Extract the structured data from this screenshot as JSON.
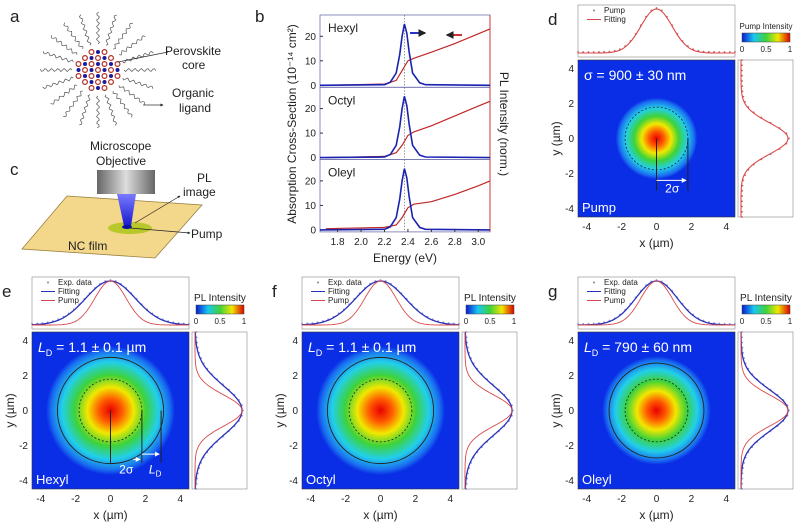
{
  "panels": {
    "a": {
      "letter": "a",
      "core_label_1": "Perovskite",
      "core_label_2": "core",
      "ligand_label_1": "Organic",
      "ligand_label_2": "ligand"
    },
    "c": {
      "letter": "c",
      "objective_1": "Microscope",
      "objective_2": "Objective",
      "pl_1": "PL",
      "pl_2": "image",
      "pump": "Pump",
      "film": "NC film"
    },
    "b": {
      "letter": "b"
    },
    "d": {
      "letter": "d",
      "annotation": "σ = 900 ± 30 nm",
      "corner": "Pump",
      "arrow_label": "2σ",
      "legend": [
        "Pump",
        "Fitting"
      ],
      "colorbar_title": "Pump Intensity",
      "colorbar_ticks": [
        "0",
        "0.5",
        "1"
      ]
    },
    "e": {
      "letter": "e",
      "annotation_pre": "L",
      "annotation_sub": "D",
      "annotation_post": " = 1.1 ± 0.1 µm",
      "corner": "Hexyl",
      "arrow_label_1": "2σ",
      "arrow_label_2": "L",
      "arrow_label_2_sub": "D",
      "legend": [
        "Exp. data",
        "Fitting",
        "Pump"
      ],
      "colorbar_title": "PL Intensity",
      "colorbar_ticks": [
        "0",
        "0.5",
        "1"
      ]
    },
    "f": {
      "letter": "f",
      "annotation_pre": "L",
      "annotation_sub": "D",
      "annotation_post": " = 1.1 ± 0.1 µm",
      "corner": "Octyl",
      "legend": [
        "Exp. data",
        "Fitting",
        "Pump"
      ],
      "colorbar_title": "PL Intensity",
      "colorbar_ticks": [
        "0",
        "0.5",
        "1"
      ]
    },
    "g": {
      "letter": "g",
      "annotation_pre": "L",
      "annotation_sub": "D",
      "annotation_post": " = 790 ± 60 nm",
      "corner": "Oleyl",
      "legend": [
        "Exp. data",
        "Fitting",
        "Pump"
      ],
      "colorbar_title": "PL Intensity",
      "colorbar_ticks": [
        "0",
        "0.5",
        "1"
      ]
    }
  },
  "chart_data": [
    {
      "panel": "b",
      "type": "line",
      "xlabel": "Energy (eV)",
      "ylabel": "Absorption Cross-Section (10⁻¹⁴ cm²)",
      "ylabel_right": "PL Intensity (norm.)",
      "xlim": [
        1.65,
        3.1
      ],
      "ylim": [
        0,
        27
      ],
      "xticks": [
        "1.8",
        "2.0",
        "2.2",
        "2.4",
        "2.6",
        "2.8",
        "3.0"
      ],
      "yticks": [
        "0",
        "10",
        "20"
      ],
      "colors": {
        "absorption": "#c0282a",
        "pl": "#1a22b0"
      },
      "subplots": [
        {
          "name": "Hexyl",
          "absorption": {
            "x": [
              1.7,
              2.2,
              2.3,
              2.35,
              2.4,
              2.45,
              2.6,
              2.8,
              3.0,
              3.1
            ],
            "y": [
              0,
              0.5,
              2,
              6,
              10,
              11,
              13.5,
              17,
              21,
              23
            ]
          },
          "pl": {
            "x": [
              2.2,
              2.25,
              2.3,
              2.33,
              2.35,
              2.37,
              2.39,
              2.41,
              2.44,
              2.5,
              2.55
            ],
            "y": [
              0.01,
              0.05,
              0.2,
              0.5,
              0.8,
              1,
              0.85,
              0.55,
              0.2,
              0.04,
              0.01
            ]
          }
        },
        {
          "name": "Octyl",
          "absorption": {
            "x": [
              1.7,
              2.2,
              2.3,
              2.35,
              2.4,
              2.45,
              2.6,
              2.8,
              3.0,
              3.1
            ],
            "y": [
              0,
              0.5,
              2,
              5,
              9,
              10.5,
              13,
              17,
              21,
              23
            ]
          },
          "pl": {
            "x": [
              2.2,
              2.25,
              2.3,
              2.33,
              2.35,
              2.37,
              2.39,
              2.41,
              2.44,
              2.5,
              2.55
            ],
            "y": [
              0.01,
              0.05,
              0.2,
              0.5,
              0.8,
              1,
              0.85,
              0.55,
              0.2,
              0.04,
              0.01
            ]
          }
        },
        {
          "name": "Oleyl",
          "absorption": {
            "x": [
              1.7,
              2.2,
              2.3,
              2.35,
              2.4,
              2.45,
              2.6,
              2.8,
              3.0,
              3.1
            ],
            "y": [
              0.5,
              1,
              2,
              5,
              9,
              10.5,
              11.5,
              14.5,
              18,
              20
            ]
          },
          "pl": {
            "x": [
              2.2,
              2.25,
              2.3,
              2.33,
              2.35,
              2.37,
              2.39,
              2.41,
              2.44,
              2.5,
              2.55
            ],
            "y": [
              0.01,
              0.05,
              0.2,
              0.5,
              0.8,
              1,
              0.85,
              0.55,
              0.2,
              0.04,
              0.01
            ]
          }
        }
      ]
    },
    {
      "panels": [
        "d",
        "e",
        "f",
        "g"
      ],
      "type": "heatmap",
      "xlabel": "x (µm)",
      "ylabel": "y (µm)",
      "xlim": [
        -4.5,
        4.5
      ],
      "ylim": [
        -4.5,
        4.5
      ],
      "ticks": [
        "-4",
        "-2",
        "0",
        "2",
        "4"
      ],
      "pump_sigma_um": 0.9,
      "diffusion_length_um": {
        "e": 1.1,
        "f": 1.1,
        "g": 0.79
      },
      "colors": {
        "pump": "#d84a4a",
        "fitting": "#2a32b8",
        "exp_data": "#8a90d8"
      }
    }
  ]
}
